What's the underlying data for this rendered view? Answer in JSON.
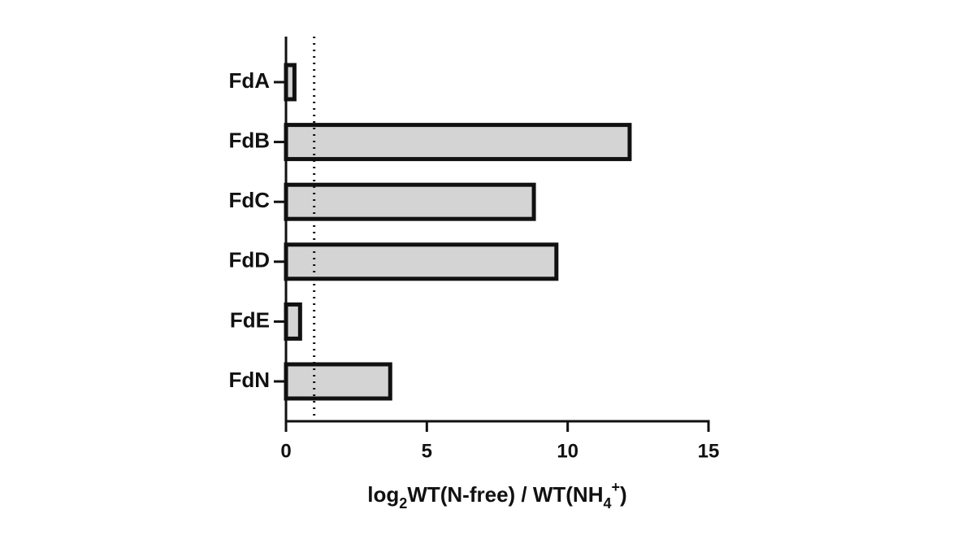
{
  "chart_data": {
    "type": "hbar",
    "categories": [
      "FdA",
      "FdB",
      "FdC",
      "FdD",
      "FdE",
      "FdN"
    ],
    "values": [
      0.3,
      12.2,
      8.8,
      9.6,
      0.5,
      3.7
    ],
    "color": "#d4d4d4",
    "edge_color": "#111111",
    "xlim": [
      0,
      15
    ],
    "xticks": [
      0,
      5,
      10,
      15
    ],
    "reference_line": 1,
    "xlabel": [
      "log",
      "2",
      "WT(N-free) / WT(NH",
      "4",
      "+",
      ")"
    ]
  }
}
